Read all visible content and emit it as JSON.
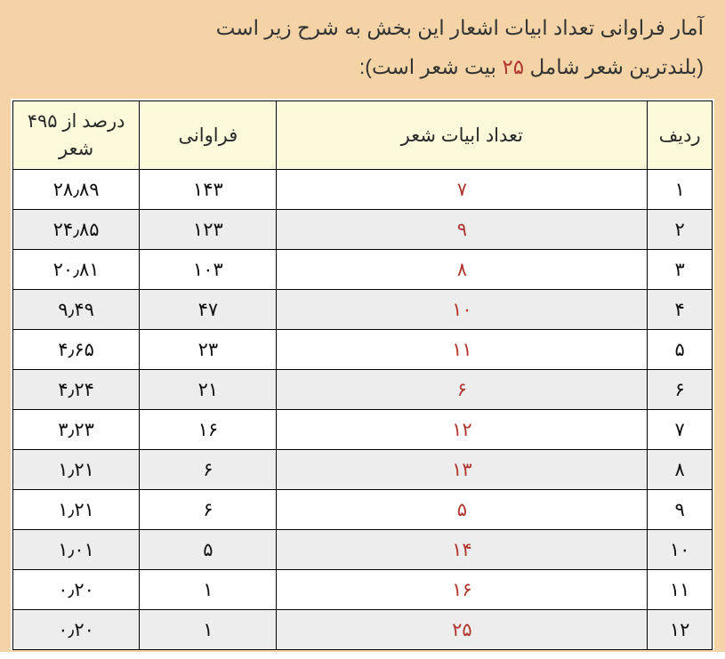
{
  "intro": {
    "line1": "آمار فراوانی تعداد ابیات اشعار این بخش به شرح زیر است",
    "line2_a": "(بلندترین شعر شامل ",
    "line2_hl": "۲۵",
    "line2_b": " بیت شعر است):"
  },
  "headers": {
    "row": "ردیف",
    "verses": "تعداد ابیات شعر",
    "freq": "فراوانی",
    "pct_a": "درصد از ۴۹۵",
    "pct_b": "شعر"
  },
  "rows": [
    {
      "row": "۱",
      "verses": "۷",
      "freq": "۱۴۳",
      "pct": "۲۸٫۸۹"
    },
    {
      "row": "۲",
      "verses": "۹",
      "freq": "۱۲۳",
      "pct": "۲۴٫۸۵"
    },
    {
      "row": "۳",
      "verses": "۸",
      "freq": "۱۰۳",
      "pct": "۲۰٫۸۱"
    },
    {
      "row": "۴",
      "verses": "۱۰",
      "freq": "۴۷",
      "pct": "۹٫۴۹"
    },
    {
      "row": "۵",
      "verses": "۱۱",
      "freq": "۲۳",
      "pct": "۴٫۶۵"
    },
    {
      "row": "۶",
      "verses": "۶",
      "freq": "۲۱",
      "pct": "۴٫۲۴"
    },
    {
      "row": "۷",
      "verses": "۱۲",
      "freq": "۱۶",
      "pct": "۳٫۲۳"
    },
    {
      "row": "۸",
      "verses": "۱۳",
      "freq": "۶",
      "pct": "۱٫۲۱"
    },
    {
      "row": "۹",
      "verses": "۵",
      "freq": "۶",
      "pct": "۱٫۲۱"
    },
    {
      "row": "۱۰",
      "verses": "۱۴",
      "freq": "۵",
      "pct": "۱٫۰۱"
    },
    {
      "row": "۱۱",
      "verses": "۱۶",
      "freq": "۱",
      "pct": "۰٫۲۰"
    },
    {
      "row": "۱۲",
      "verses": "۲۵",
      "freq": "۱",
      "pct": "۰٫۲۰"
    }
  ]
}
